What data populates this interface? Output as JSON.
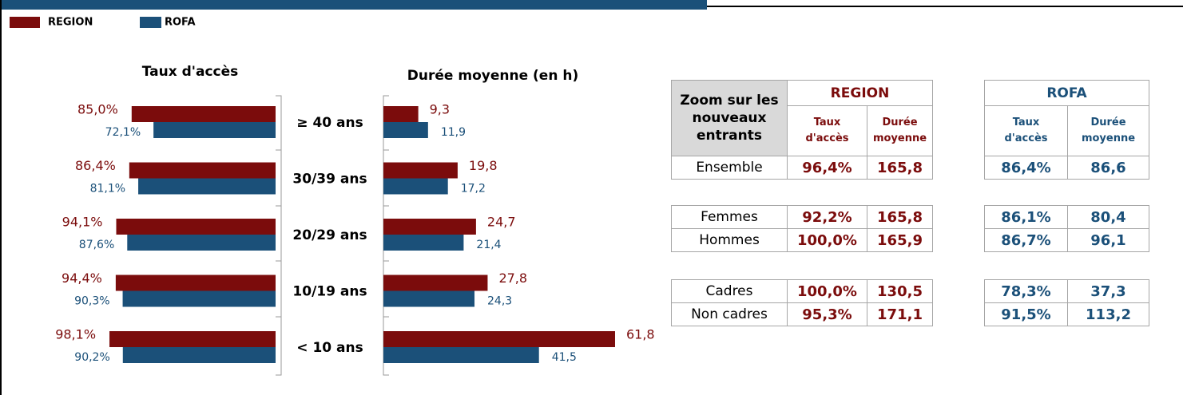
{
  "chart_data": [
    {
      "type": "hbar-left",
      "title": "Taux d'accès",
      "categories": [
        "≥ 40 ans",
        "30/39 ans",
        "20/29 ans",
        "10/19 ans",
        "< 10 ans"
      ],
      "xlim": [
        0,
        100
      ],
      "series": [
        {
          "name": "REGION",
          "color": "#7b0c0c",
          "values": [
            85.0,
            86.4,
            94.1,
            94.4,
            98.1
          ],
          "value_labels": [
            "85,0%",
            "86,4%",
            "94,1%",
            "94,4%",
            "98,1%"
          ]
        },
        {
          "name": "ROFA",
          "color": "#1b5079",
          "values": [
            72.1,
            81.1,
            87.6,
            90.3,
            90.2
          ],
          "value_labels": [
            "72,1%",
            "81,1%",
            "87,6%",
            "90,3%",
            "90,2%"
          ]
        }
      ]
    },
    {
      "type": "hbar-right",
      "title": "Durée moyenne (en h)",
      "xlim": [
        0,
        65
      ],
      "series": [
        {
          "name": "REGION",
          "color": "#7b0c0c",
          "values": [
            9.3,
            19.8,
            24.7,
            27.8,
            61.8
          ],
          "value_labels": [
            "9,3",
            "19,8",
            "24,7",
            "27,8",
            "61,8"
          ]
        },
        {
          "name": "ROFA",
          "color": "#1b5079",
          "values": [
            11.9,
            17.2,
            21.4,
            24.3,
            41.5
          ],
          "value_labels": [
            "11,9",
            "17,2",
            "21,4",
            "24,3",
            "41,5"
          ]
        }
      ]
    }
  ],
  "table": {
    "corner": "Zoom sur les nouveaux entrants",
    "groups": [
      {
        "name": "REGION",
        "columns": [
          "Taux d'accès",
          "Durée moyenne"
        ]
      },
      {
        "name": "ROFA",
        "columns": [
          "Taux d'accès",
          "Durée moyenne"
        ]
      }
    ],
    "blocks": [
      [
        {
          "label": "Ensemble",
          "cells": [
            "96,4%",
            "165,8",
            "86,4%",
            "86,6"
          ]
        }
      ],
      [
        {
          "label": "Femmes",
          "cells": [
            "92,2%",
            "165,8",
            "86,1%",
            "80,4"
          ]
        },
        {
          "label": "Hommes",
          "cells": [
            "100,0%",
            "165,9",
            "86,7%",
            "96,1"
          ]
        }
      ],
      [
        {
          "label": "Cadres",
          "cells": [
            "100,0%",
            "130,5",
            "78,3%",
            "37,3"
          ]
        },
        {
          "label": "Non cadres",
          "cells": [
            "95,3%",
            "171,1",
            "91,5%",
            "113,2"
          ]
        }
      ]
    ]
  }
}
